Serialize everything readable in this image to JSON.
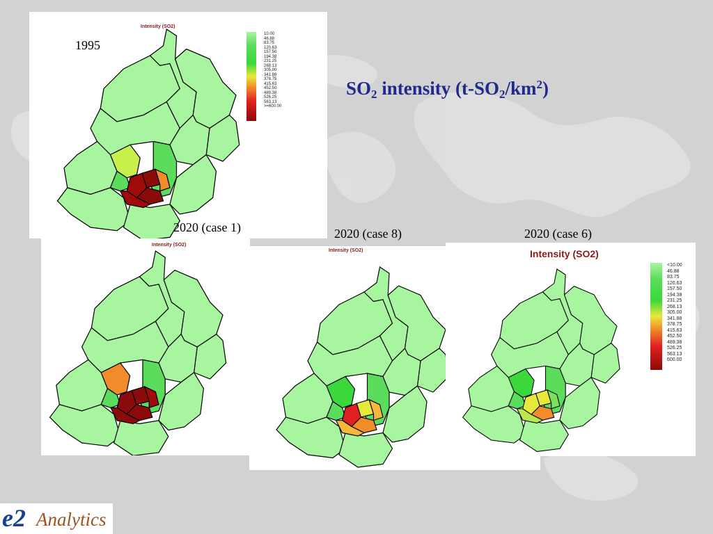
{
  "slide": {
    "heading": {
      "so": "SO",
      "sub1": "2",
      "rest": " intensity (t-SO",
      "sub2": "2",
      "unit": "/km",
      "sup": "2",
      "close": ")"
    },
    "logo": {
      "e2": "e2",
      "analytics": "Analytics"
    }
  },
  "legend_labels": [
    "10.00",
    "46.88",
    "83.75",
    "120.63",
    "157.50",
    "194.38",
    "231.25",
    "268.13",
    "305.00",
    "341.88",
    "378.75",
    "415.63",
    "452.50",
    "489.38",
    "526.25",
    "563.13"
  ],
  "legend_last_1995": ">=600.00",
  "legend_last_case6": "600.00",
  "legend_first_case6": "<10.00",
  "colors": {
    "light_green": "#a8f5a0",
    "green": "#5cdc5c",
    "yellow_green": "#c8f04a",
    "yellow": "#e8e83a",
    "orange": "#f08c2a",
    "red": "#e02020",
    "dark_red": "#8b0a0a",
    "title_red": "#8b1a1a",
    "heading_blue": "#1f2a8c"
  },
  "maps": [
    {
      "id": "map-1995",
      "label": "1995",
      "title": "Intensity (SO2)",
      "district_colors": {
        "hd": "#c8f04a",
        "dc": "#8b0a0a",
        "xc": "#8b0a0a",
        "cy": "#f08c2a",
        "xw": "#a00a0a",
        "fe": "#a00a0a",
        "sj": "#5cdc5c"
      }
    },
    {
      "id": "map-2020-case1",
      "label": "2020 (case 1)",
      "title": "Intensity (SO2)",
      "district_colors": {
        "hd": "#f08c2a",
        "dc": "#8b0a0a",
        "xc": "#8b0a0a",
        "cy": "#a00a0a",
        "xw": "#8b0a0a",
        "fe": "#8b0a0a",
        "sj": "#5cdc5c"
      }
    },
    {
      "id": "map-2020-case8",
      "label": "2020 (case 8)",
      "title": "Intensity (SO2)",
      "district_colors": {
        "hd": "#3ad83a",
        "dc": "#e02020",
        "xc": "#e8e83a",
        "cy": "#f5b83a",
        "xw": "#f08c2a",
        "fe": "#f5b83a",
        "sj": "#5cdc5c"
      }
    },
    {
      "id": "map-2020-case6",
      "label": "2020 (case 6)",
      "title": "Intensity (SO2)",
      "district_colors": {
        "hd": "#3ad83a",
        "dc": "#e8e83a",
        "xc": "#f08c2a",
        "cy": "#7ee05a",
        "xw": "#e8e83a",
        "fe": "#b8e84a",
        "sj": "#5cdc5c"
      }
    }
  ]
}
